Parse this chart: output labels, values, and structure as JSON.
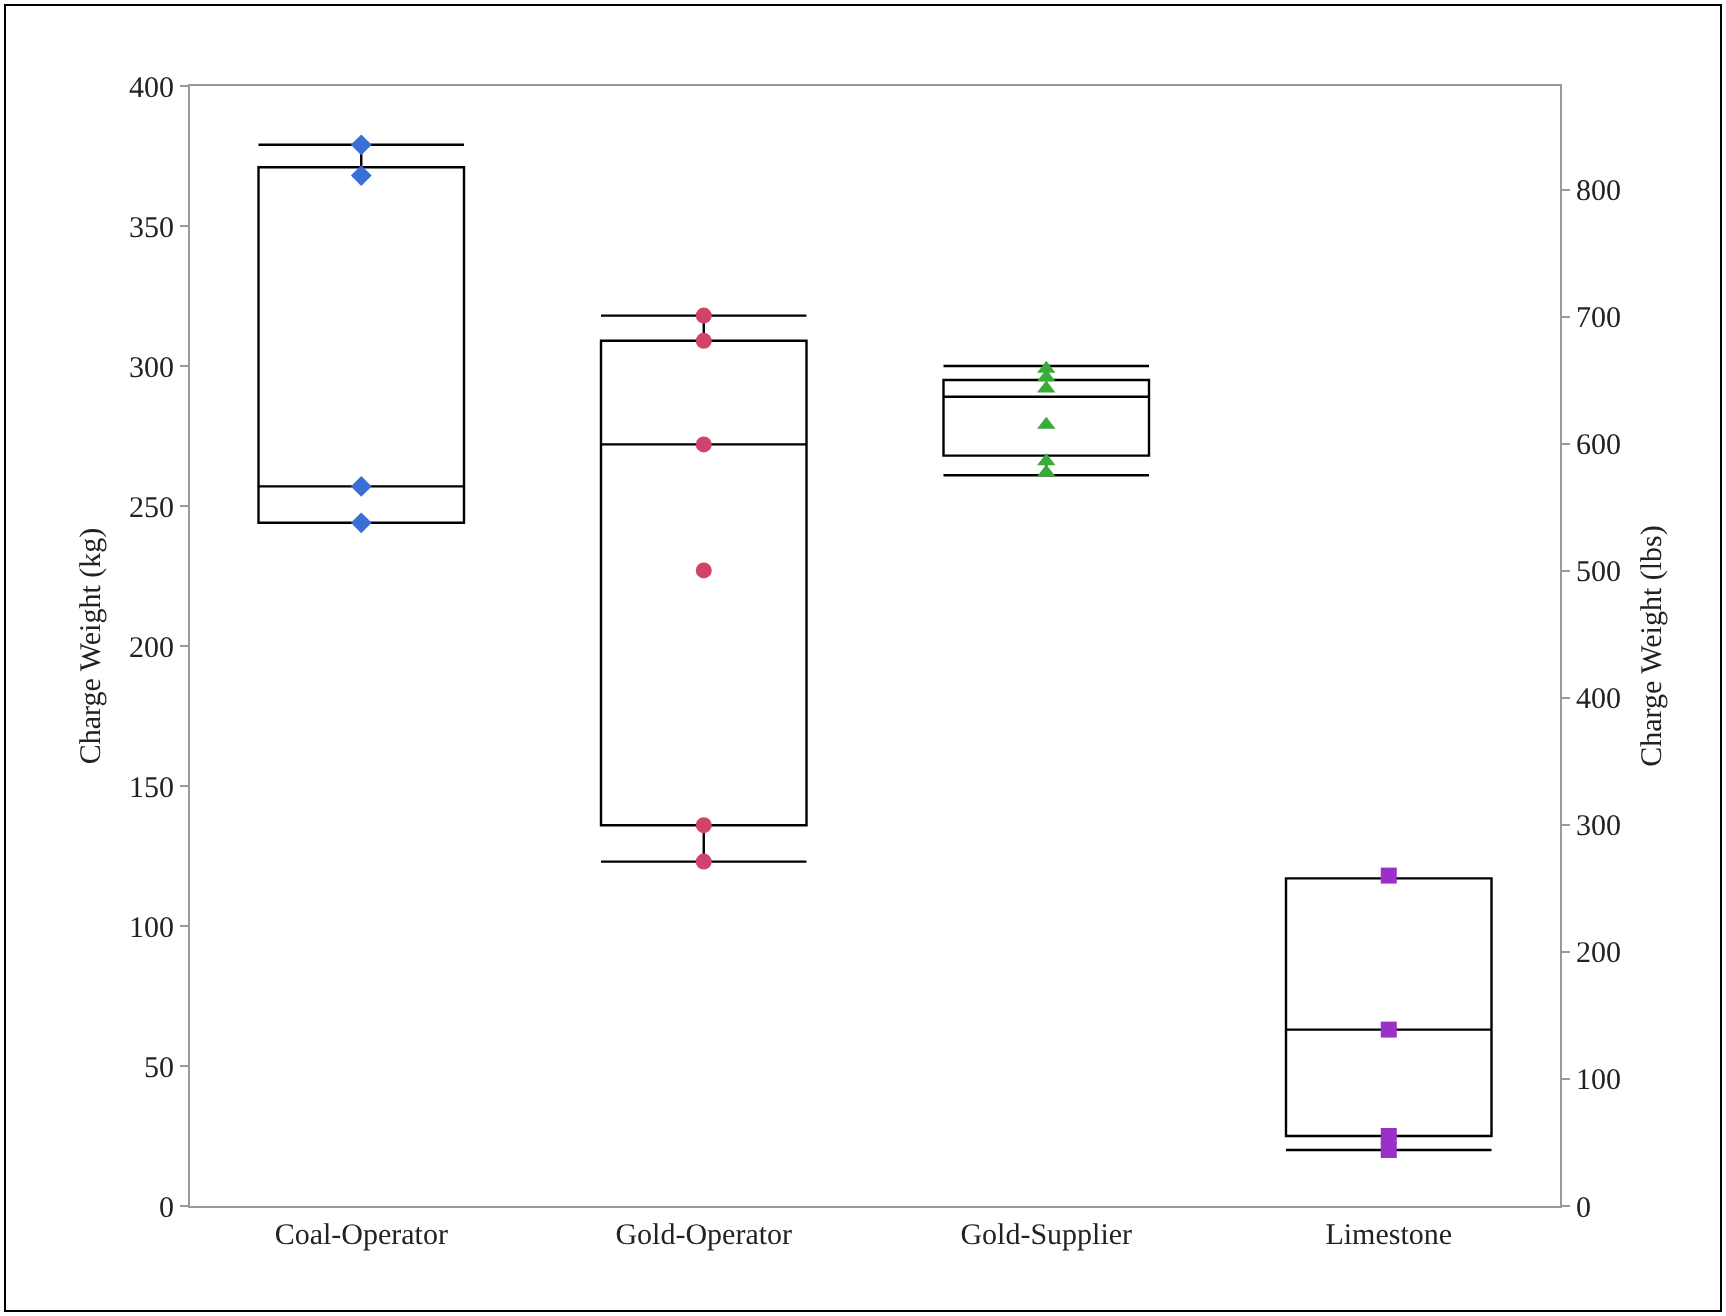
{
  "chart_data": {
    "type": "box",
    "categories": [
      "Coal-Operator",
      "Gold-Operator",
      "Gold-Supplier",
      "Limestone"
    ],
    "boxes": [
      {
        "low": 244,
        "q1": 244,
        "median": 257,
        "q3": 371,
        "high": 379
      },
      {
        "low": 123,
        "q1": 136,
        "median": 272,
        "q3": 309,
        "high": 318
      },
      {
        "low": 261,
        "q1": 268,
        "median": 289,
        "q3": 295,
        "high": 300
      },
      {
        "low": 20,
        "q1": 25,
        "median": 63,
        "q3": 117,
        "high": 117
      }
    ],
    "color": "#000000",
    "series": [
      {
        "type": "scatter",
        "color": "#3a6fd8",
        "marker": "diamond",
        "x": [
          "Coal-Operator",
          "Coal-Operator",
          "Coal-Operator",
          "Coal-Operator"
        ],
        "values": [
          379,
          368,
          257,
          244
        ]
      },
      {
        "type": "scatter",
        "color": "#d0436a",
        "marker": "circle",
        "x": [
          "Gold-Operator",
          "Gold-Operator",
          "Gold-Operator",
          "Gold-Operator",
          "Gold-Operator",
          "Gold-Operator"
        ],
        "values": [
          318,
          309,
          272,
          227,
          136,
          123
        ]
      },
      {
        "type": "scatter",
        "color": "#3aaa3a",
        "marker": "triangle",
        "x": [
          "Gold-Supplier",
          "Gold-Supplier",
          "Gold-Supplier",
          "Gold-Supplier",
          "Gold-Supplier",
          "Gold-Supplier"
        ],
        "values": [
          299,
          296,
          292,
          279,
          266,
          262
        ]
      },
      {
        "type": "scatter",
        "color": "#9b30c8",
        "marker": "square",
        "x": [
          "Limestone",
          "Limestone",
          "Limestone",
          "Limestone"
        ],
        "values": [
          118,
          63,
          25,
          20
        ]
      }
    ],
    "ylabel": "Charge Weight (kg)",
    "y2label": "Charge Weight (lbs)",
    "ylim": [
      0,
      400
    ],
    "yticks": [
      0,
      50,
      100,
      150,
      200,
      250,
      300,
      350,
      400
    ],
    "y2lim": [
      0,
      881.8
    ],
    "y2ticks": [
      0,
      100,
      200,
      300,
      400,
      500,
      600,
      700,
      800
    ]
  }
}
